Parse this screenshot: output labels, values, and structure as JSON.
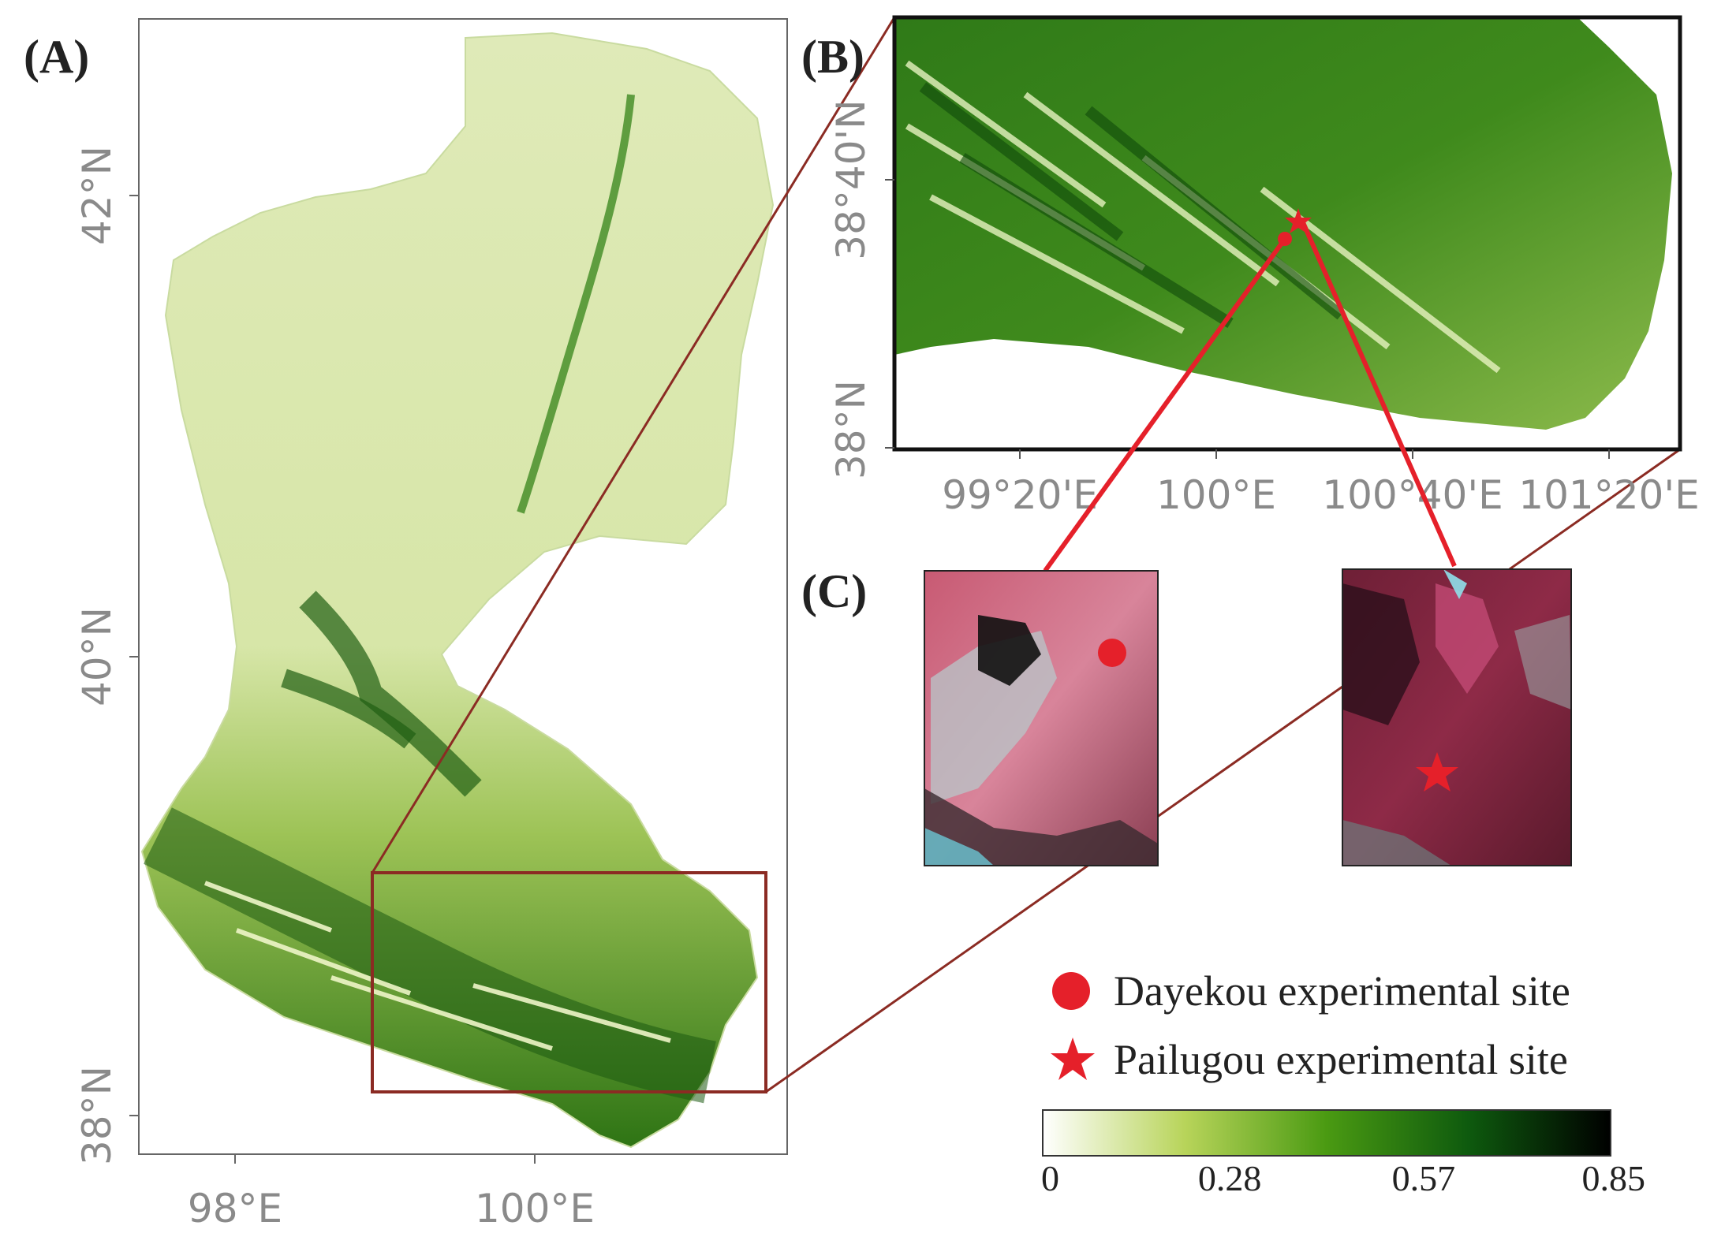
{
  "panels": {
    "a": {
      "label": "(A)"
    },
    "b": {
      "label": "(B)"
    },
    "c": {
      "label": "(C)"
    }
  },
  "map_a": {
    "y_ticks": [
      "42°N",
      "40°N",
      "38°N"
    ],
    "x_ticks": [
      "98°E",
      "100°E"
    ]
  },
  "map_b": {
    "y_ticks": [
      "38°40'N",
      "38°N"
    ],
    "x_ticks": [
      "99°20'E",
      "100°E",
      "100°40'E",
      "101°20'E"
    ]
  },
  "legend": {
    "dayekou": "Dayekou experimental site",
    "pailugou": "Pailugou experimental site",
    "marker_color": "#e5202a"
  },
  "colorbar": {
    "ticks": [
      "0",
      "0.28",
      "0.57",
      "0.85"
    ],
    "values": [
      0,
      0.28,
      0.57,
      0.85
    ],
    "colors": [
      "#ffffff",
      "#b8d45a",
      "#4a9a12",
      "#0e5a0e",
      "#000000"
    ]
  },
  "colors": {
    "frame_line": "#8b2b23",
    "site_line": "#e5202a"
  }
}
